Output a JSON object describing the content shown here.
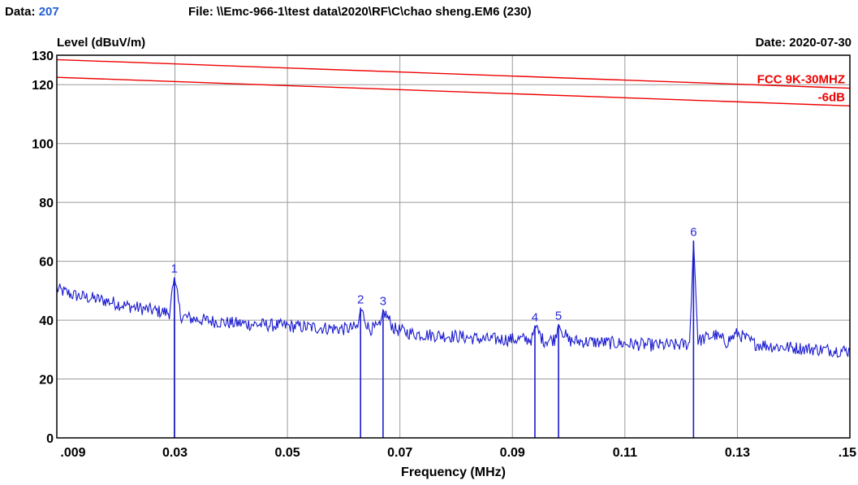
{
  "header": {
    "data_label": "Data:",
    "data_value": "207",
    "file_text": "File: \\\\Emc-966-1\\test data\\2020\\RF\\C\\chao sheng.EM6  (230)",
    "date_text": "Date: 2020-07-30"
  },
  "colors": {
    "trace": "#1a1ad0",
    "limit": "#ee0000",
    "grid": "#9a9a9a",
    "marker_text": "#2828d8"
  },
  "chart_data": {
    "type": "line",
    "title": "",
    "xlabel": "Frequency (MHz)",
    "ylabel": "Level (dBuV/m)",
    "xlim": [
      0.009,
      0.15
    ],
    "ylim": [
      0,
      130
    ],
    "x_ticks": [
      0.009,
      0.03,
      0.05,
      0.07,
      0.09,
      0.11,
      0.13,
      0.15
    ],
    "x_tick_labels": [
      ".009",
      "0.03",
      "0.05",
      "0.07",
      "0.09",
      "0.11",
      "0.13",
      ".15"
    ],
    "y_ticks": [
      0,
      20,
      40,
      60,
      80,
      100,
      120,
      130
    ],
    "y_tick_labels": [
      "0",
      "20",
      "40",
      "60",
      "80",
      "100",
      "120",
      "130"
    ],
    "grid": true,
    "limit_lines": [
      {
        "name": "FCC 9K-30MHZ",
        "x": [
          0.009,
          0.15
        ],
        "y": [
          128.5,
          118.8
        ]
      },
      {
        "name": "-6dB",
        "x": [
          0.009,
          0.15
        ],
        "y": [
          122.5,
          112.8
        ]
      }
    ],
    "trace": {
      "x": [
        0.009,
        0.012,
        0.015,
        0.018,
        0.021,
        0.024,
        0.027,
        0.029,
        0.0299,
        0.031,
        0.033,
        0.036,
        0.04,
        0.045,
        0.05,
        0.055,
        0.06,
        0.0625,
        0.063,
        0.0645,
        0.0665,
        0.067,
        0.069,
        0.072,
        0.075,
        0.08,
        0.085,
        0.09,
        0.0935,
        0.094,
        0.0955,
        0.0975,
        0.0982,
        0.1,
        0.105,
        0.11,
        0.115,
        0.119,
        0.1215,
        0.1222,
        0.123,
        0.126,
        0.128,
        0.13,
        0.133,
        0.137,
        0.141,
        0.145,
        0.15
      ],
      "y": [
        50.5,
        48.5,
        47.5,
        46.5,
        45.0,
        44.0,
        43.0,
        42.5,
        54.5,
        41.5,
        40.5,
        39.8,
        39.0,
        38.5,
        38.0,
        37.5,
        37.0,
        37.5,
        44.0,
        37.0,
        37.5,
        43.5,
        37.0,
        35.5,
        35.0,
        34.5,
        33.5,
        33.5,
        33.5,
        38.0,
        33.0,
        33.5,
        38.5,
        33.0,
        32.5,
        32.0,
        31.5,
        31.5,
        32.0,
        67.0,
        33.0,
        35.0,
        32.5,
        35.5,
        32.0,
        31.0,
        30.5,
        30.0,
        29.5
      ]
    },
    "markers": [
      {
        "label": "1",
        "x": 0.0299,
        "y": 54.5
      },
      {
        "label": "2",
        "x": 0.063,
        "y": 44.0
      },
      {
        "label": "3",
        "x": 0.067,
        "y": 43.5
      },
      {
        "label": "4",
        "x": 0.094,
        "y": 38.0
      },
      {
        "label": "5",
        "x": 0.0982,
        "y": 38.5
      },
      {
        "label": "6",
        "x": 0.1222,
        "y": 67.0
      }
    ]
  }
}
